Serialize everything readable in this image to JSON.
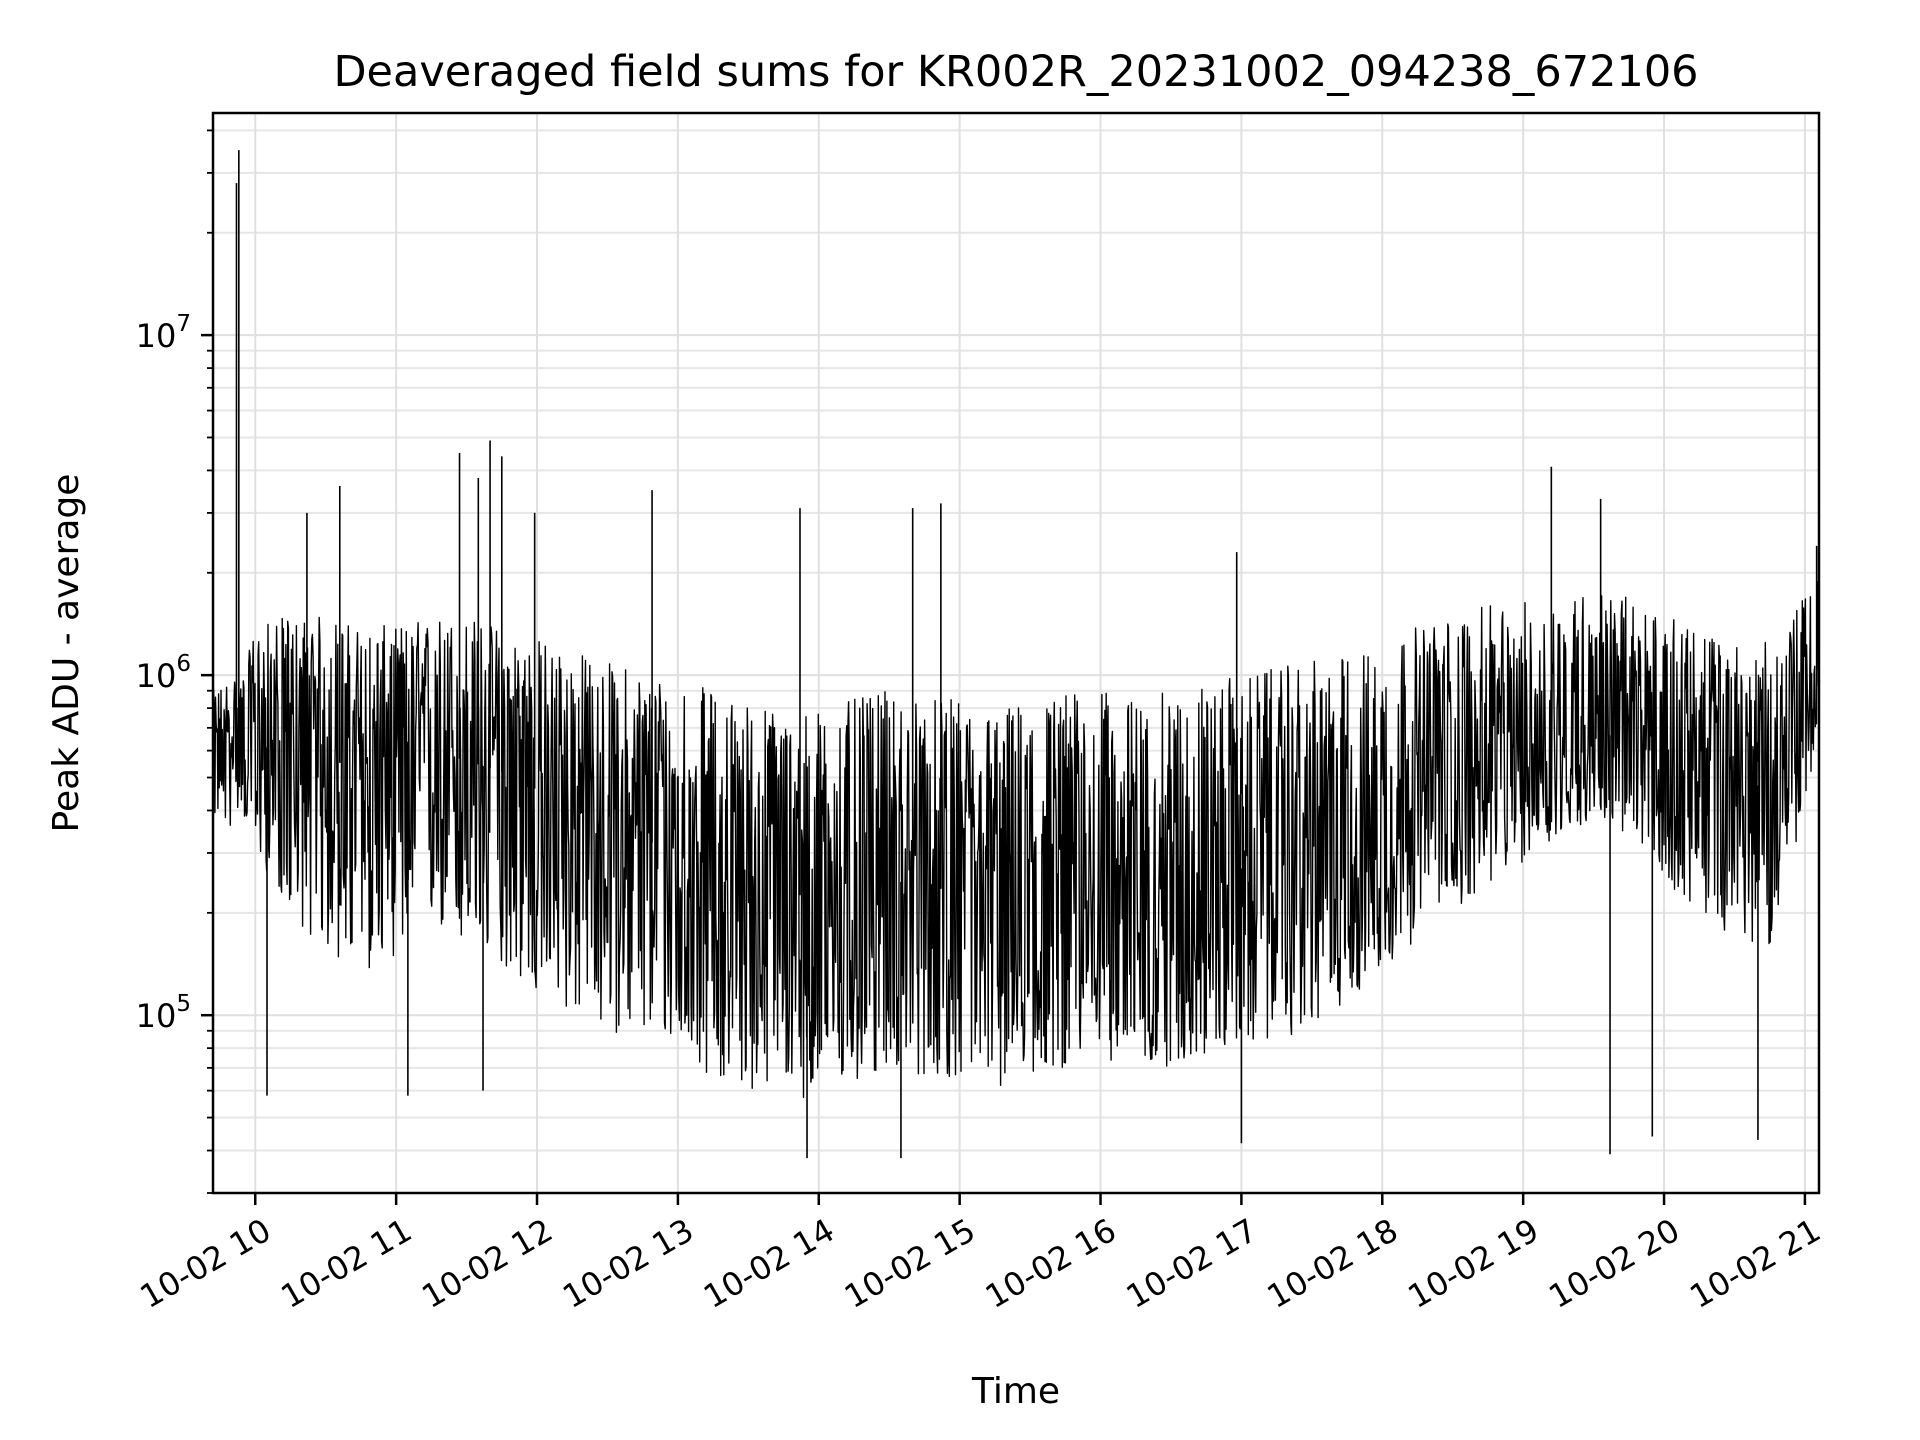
{
  "chart_data": {
    "type": "line",
    "title": "Deaveraged field sums for KR002R_20231002_094238_672106",
    "xlabel": "Time",
    "ylabel": "Peak ADU - average",
    "x_range": [
      "2023-10-02T09:42:00",
      "2023-10-02T21:06:00"
    ],
    "ylim": [
      30000,
      45000000
    ],
    "y_scale": "log",
    "grid": true,
    "line_color": "#000000",
    "x_ticks": [
      {
        "label": "10-02 10",
        "value": "2023-10-02T10:00:00"
      },
      {
        "label": "10-02 11",
        "value": "2023-10-02T11:00:00"
      },
      {
        "label": "10-02 12",
        "value": "2023-10-02T12:00:00"
      },
      {
        "label": "10-02 13",
        "value": "2023-10-02T13:00:00"
      },
      {
        "label": "10-02 14",
        "value": "2023-10-02T14:00:00"
      },
      {
        "label": "10-02 15",
        "value": "2023-10-02T15:00:00"
      },
      {
        "label": "10-02 16",
        "value": "2023-10-02T16:00:00"
      },
      {
        "label": "10-02 17",
        "value": "2023-10-02T17:00:00"
      },
      {
        "label": "10-02 18",
        "value": "2023-10-02T18:00:00"
      },
      {
        "label": "10-02 19",
        "value": "2023-10-02T19:00:00"
      },
      {
        "label": "10-02 20",
        "value": "2023-10-02T20:00:00"
      },
      {
        "label": "10-02 21",
        "value": "2023-10-02T21:00:00"
      }
    ],
    "y_ticks": [
      {
        "base": "10",
        "exp": "5",
        "value": 100000
      },
      {
        "base": "10",
        "exp": "6",
        "value": 1000000
      },
      {
        "base": "10",
        "exp": "7",
        "value": 10000000
      }
    ],
    "series": [
      {
        "x": [
          "2023-10-02T09:42:00",
          "2023-10-02T09:50:00",
          "2023-10-02T09:52:00",
          "2023-10-02T09:53:00",
          "2023-10-02T09:55:00",
          "2023-10-02T10:00:00",
          "2023-10-02T10:15:00",
          "2023-10-02T10:30:00",
          "2023-10-02T10:45:00",
          "2023-10-02T11:00:00",
          "2023-10-02T11:15:00",
          "2023-10-02T11:30:00",
          "2023-10-02T11:45:00",
          "2023-10-02T12:00:00",
          "2023-10-02T12:15:00",
          "2023-10-02T12:30:00",
          "2023-10-02T12:45:00",
          "2023-10-02T13:00:00",
          "2023-10-02T13:15:00",
          "2023-10-02T13:30:00",
          "2023-10-02T13:45:00",
          "2023-10-02T14:00:00",
          "2023-10-02T14:15:00",
          "2023-10-02T14:30:00",
          "2023-10-02T14:45:00",
          "2023-10-02T15:00:00",
          "2023-10-02T15:15:00",
          "2023-10-02T15:30:00",
          "2023-10-02T15:45:00",
          "2023-10-02T16:00:00",
          "2023-10-02T16:15:00",
          "2023-10-02T16:30:00",
          "2023-10-02T16:45:00",
          "2023-10-02T17:00:00",
          "2023-10-02T17:15:00",
          "2023-10-02T17:30:00",
          "2023-10-02T17:45:00",
          "2023-10-02T18:00:00",
          "2023-10-02T18:15:00",
          "2023-10-02T18:30:00",
          "2023-10-02T18:45:00",
          "2023-10-02T19:00:00",
          "2023-10-02T19:15:00",
          "2023-10-02T19:30:00",
          "2023-10-02T19:45:00",
          "2023-10-02T20:00:00",
          "2023-10-02T20:15:00",
          "2023-10-02T20:30:00",
          "2023-10-02T20:45:00",
          "2023-10-02T21:00:00",
          "2023-10-02T21:06:00"
        ],
        "median": [
          600000,
          650000,
          700000,
          700000,
          700000,
          620000,
          600000,
          560000,
          540000,
          560000,
          600000,
          560000,
          520000,
          460000,
          400000,
          350000,
          330000,
          300000,
          260000,
          240000,
          230000,
          220000,
          230000,
          250000,
          240000,
          230000,
          220000,
          240000,
          250000,
          250000,
          240000,
          250000,
          260000,
          270000,
          280000,
          290000,
          320000,
          360000,
          420000,
          470000,
          520000,
          560000,
          620000,
          680000,
          650000,
          580000,
          520000,
          480000,
          470000,
          800000,
          1100000
        ],
        "low": [
          380000,
          350000,
          400000,
          400000,
          380000,
          300000,
          200000,
          150000,
          130000,
          150000,
          180000,
          150000,
          140000,
          110000,
          100000,
          90000,
          85000,
          80000,
          65000,
          60000,
          60000,
          55000,
          60000,
          70000,
          65000,
          65000,
          60000,
          65000,
          70000,
          75000,
          70000,
          70000,
          75000,
          80000,
          85000,
          90000,
          110000,
          130000,
          170000,
          200000,
          240000,
          280000,
          330000,
          380000,
          330000,
          250000,
          200000,
          170000,
          160000,
          400000,
          700000
        ],
        "high": [
          900000,
          1000000,
          1000000,
          1000000,
          1000000,
          1400000,
          1500000,
          1500000,
          1400000,
          1400000,
          1500000,
          1500000,
          1400000,
          1300000,
          1200000,
          1100000,
          1050000,
          1000000,
          900000,
          850000,
          800000,
          800000,
          850000,
          900000,
          850000,
          850000,
          800000,
          850000,
          900000,
          900000,
          850000,
          900000,
          950000,
          1000000,
          1050000,
          1100000,
          1150000,
          1250000,
          1400000,
          1500000,
          1600000,
          1650000,
          1700000,
          1800000,
          1700000,
          1500000,
          1350000,
          1250000,
          1250000,
          1700000,
          2000000
        ]
      }
    ],
    "spikes": [
      {
        "x": "2023-10-02T09:52:00",
        "y": 28000000
      },
      {
        "x": "2023-10-02T09:53:00",
        "y": 35000000
      },
      {
        "x": "2023-10-02T10:22:00",
        "y": 3000000
      },
      {
        "x": "2023-10-02T10:36:00",
        "y": 3600000
      },
      {
        "x": "2023-10-02T11:27:00",
        "y": 4500000
      },
      {
        "x": "2023-10-02T11:35:00",
        "y": 3800000
      },
      {
        "x": "2023-10-02T11:37:00",
        "y": 60000
      },
      {
        "x": "2023-10-02T11:40:00",
        "y": 4900000
      },
      {
        "x": "2023-10-02T11:45:00",
        "y": 4400000
      },
      {
        "x": "2023-10-02T11:59:00",
        "y": 3000000
      },
      {
        "x": "2023-10-02T10:05:00",
        "y": 58000
      },
      {
        "x": "2023-10-02T11:05:00",
        "y": 58000
      },
      {
        "x": "2023-10-02T12:49:00",
        "y": 3500000
      },
      {
        "x": "2023-10-02T13:52:00",
        "y": 3100000
      },
      {
        "x": "2023-10-02T14:40:00",
        "y": 3100000
      },
      {
        "x": "2023-10-02T14:52:00",
        "y": 3200000
      },
      {
        "x": "2023-10-02T13:55:00",
        "y": 38000
      },
      {
        "x": "2023-10-02T14:35:00",
        "y": 38000
      },
      {
        "x": "2023-10-02T16:58:00",
        "y": 2300000
      },
      {
        "x": "2023-10-02T17:00:00",
        "y": 42000
      },
      {
        "x": "2023-10-02T19:12:00",
        "y": 4100000
      },
      {
        "x": "2023-10-02T19:33:00",
        "y": 3300000
      },
      {
        "x": "2023-10-02T19:37:00",
        "y": 39000
      },
      {
        "x": "2023-10-02T19:55:00",
        "y": 44000
      },
      {
        "x": "2023-10-02T20:40:00",
        "y": 43000
      },
      {
        "x": "2023-10-02T21:05:00",
        "y": 2400000
      }
    ]
  }
}
